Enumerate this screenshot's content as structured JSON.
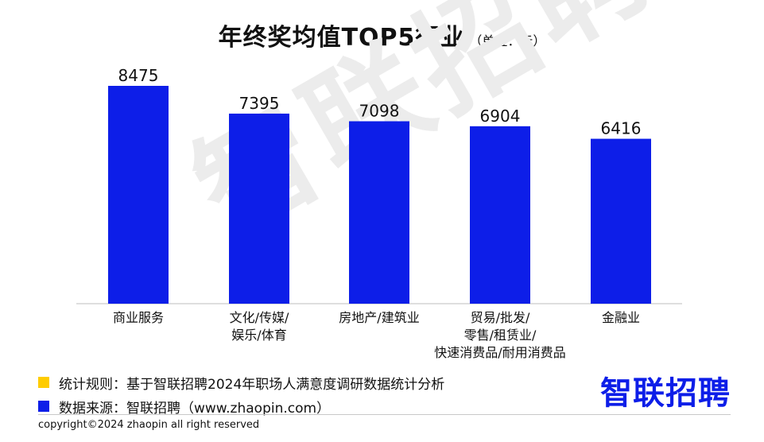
{
  "header": {
    "title": "年终奖均值TOP5行业",
    "unit": "（单位：元）"
  },
  "watermark": "智联招聘",
  "chart_data": {
    "type": "bar",
    "title": "年终奖均值TOP5行业",
    "unit": "（单位：元）",
    "categories": [
      [
        "商业服务"
      ],
      [
        "文化/传媒/",
        "娱乐/体育"
      ],
      [
        "房地产/建筑业"
      ],
      [
        "贸易/批发/",
        "零售/租赁业/",
        "快速消费品/耐用消费品"
      ],
      [
        "金融业"
      ]
    ],
    "series": [
      {
        "values": [
          8475,
          7395,
          7098,
          6904,
          6416
        ]
      }
    ],
    "ylim": [
      0,
      8475
    ],
    "bar_color": "#0d1ee8",
    "grid": false,
    "data_labels": true
  },
  "notes": [
    {
      "color": "#ffcc00",
      "text": "统计规则：基于智联招聘2024年职场人满意度调研数据统计分析"
    },
    {
      "color": "#0d1ee8",
      "text": "数据来源：智联招聘（www.zhaopin.com）"
    }
  ],
  "brand": {
    "text": "智联招聘",
    "color": "#0d1ee8"
  },
  "footer": {
    "copyright": "copyright©2024 zhaopin all right reserved"
  }
}
